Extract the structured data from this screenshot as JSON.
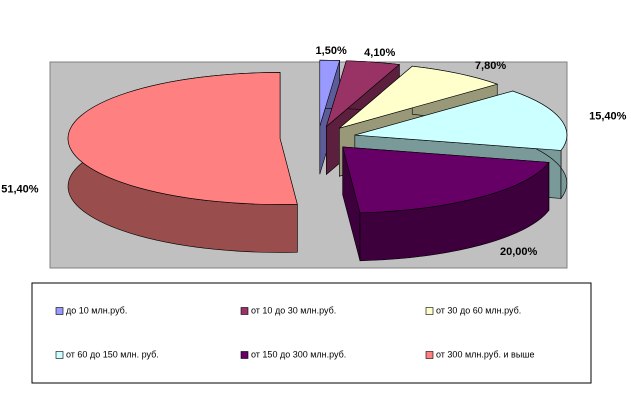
{
  "chart_data": {
    "type": "pie",
    "categories": [
      "до 10 млн.руб.",
      "от 10 до 30 млн.руб.",
      "от 30 до 60 млн.руб.",
      "от 60 до 150 млн. руб.",
      "от 150 до 300 млн.руб.",
      "от 300 млн.руб. и выше"
    ],
    "values": [
      1.5,
      4.1,
      7.8,
      15.4,
      20.0,
      51.4
    ],
    "value_labels": [
      "1,50%",
      "4,10%",
      "7,80%",
      "15,40%",
      "20,00%",
      "51,40%"
    ],
    "colors": [
      "#9999ff",
      "#993366",
      "#ffffcc",
      "#ccffff",
      "#660066",
      "#ff8080"
    ]
  }
}
